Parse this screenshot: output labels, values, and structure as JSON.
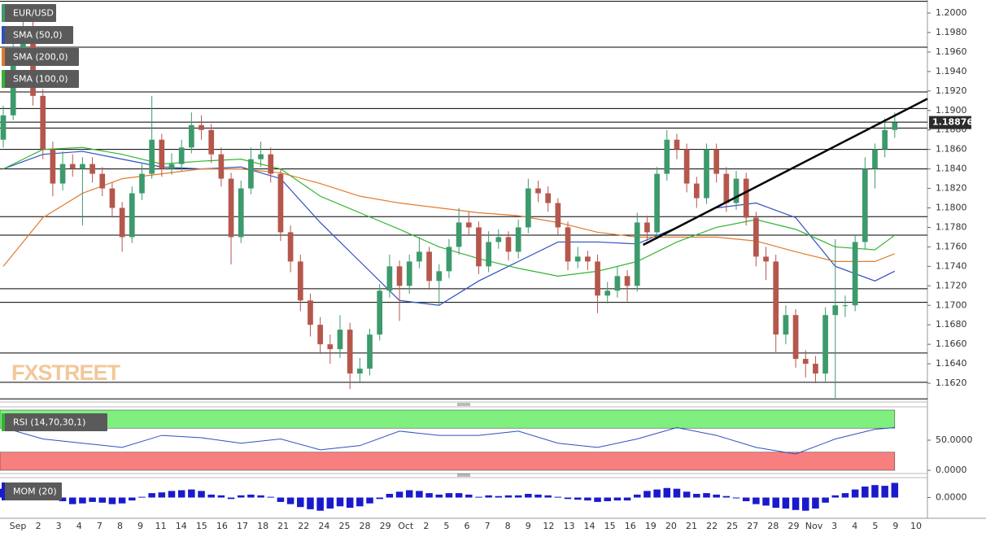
{
  "watermark": "FXSTREET",
  "chart_data": [
    {
      "type": "candlestick",
      "title": "EUR/USD",
      "up_color": "#3d9a6c",
      "down_color": "#b5574c",
      "title_color": "#3d9a6c",
      "open": [
        1.187,
        1.1895,
        1.196,
        1.1985,
        1.1915,
        1.186,
        1.1825,
        1.1845,
        1.184,
        1.1845,
        1.1835,
        1.182,
        1.18,
        1.177,
        1.1815,
        1.1835,
        1.187,
        1.184,
        1.1845,
        1.1862,
        1.1885,
        1.188,
        1.1855,
        1.183,
        1.177,
        1.182,
        1.185,
        1.1855,
        1.1835,
        1.1775,
        1.1745,
        1.1705,
        1.168,
        1.166,
        1.1655,
        1.1675,
        1.163,
        1.1635,
        1.167,
        1.1715,
        1.174,
        1.172,
        1.1745,
        1.1755,
        1.1725,
        1.1735,
        1.176,
        1.1785,
        1.178,
        1.174,
        1.1765,
        1.177,
        1.1755,
        1.178,
        1.182,
        1.1815,
        1.1805,
        1.178,
        1.1745,
        1.175,
        1.1745,
        1.171,
        1.1715,
        1.173,
        1.172,
        1.1785,
        1.1775,
        1.1835,
        1.187,
        1.186,
        1.1825,
        1.181,
        1.186,
        1.1835,
        1.1805,
        1.183,
        1.179,
        1.175,
        1.1745,
        1.167,
        1.169,
        1.1645,
        1.164,
        1.163,
        1.169,
        1.17,
        1.17,
        1.1765,
        1.184,
        1.186,
        1.188
      ],
      "high": [
        1.1905,
        1.1975,
        1.2008,
        1.1995,
        1.1922,
        1.1868,
        1.1858,
        1.1855,
        1.1852,
        1.1852,
        1.1842,
        1.1826,
        1.1806,
        1.1822,
        1.1845,
        1.1915,
        1.1876,
        1.1856,
        1.187,
        1.1898,
        1.1895,
        1.1886,
        1.1862,
        1.1836,
        1.1828,
        1.1862,
        1.1868,
        1.1862,
        1.184,
        1.1782,
        1.1752,
        1.1712,
        1.1688,
        1.167,
        1.169,
        1.1682,
        1.1646,
        1.1676,
        1.1722,
        1.1752,
        1.1746,
        1.1752,
        1.177,
        1.176,
        1.1742,
        1.1768,
        1.18,
        1.1796,
        1.1786,
        1.1776,
        1.1778,
        1.1776,
        1.1788,
        1.183,
        1.1828,
        1.1822,
        1.181,
        1.1786,
        1.176,
        1.1756,
        1.1752,
        1.1724,
        1.174,
        1.1736,
        1.1795,
        1.1792,
        1.1842,
        1.188,
        1.1876,
        1.1866,
        1.1832,
        1.1866,
        1.1866,
        1.1842,
        1.1838,
        1.1836,
        1.1796,
        1.176,
        1.1752,
        1.17,
        1.1696,
        1.1654,
        1.1648,
        1.1698,
        1.1768,
        1.171,
        1.1772,
        1.1852,
        1.1866,
        1.1892,
        1.1898
      ],
      "low": [
        1.1862,
        1.189,
        1.195,
        1.1905,
        1.185,
        1.1812,
        1.1818,
        1.1832,
        1.1782,
        1.1826,
        1.1812,
        1.179,
        1.1755,
        1.1764,
        1.1808,
        1.183,
        1.1832,
        1.1834,
        1.1838,
        1.1856,
        1.187,
        1.1846,
        1.1822,
        1.1742,
        1.1764,
        1.1814,
        1.1842,
        1.1826,
        1.1766,
        1.1734,
        1.1694,
        1.1668,
        1.165,
        1.164,
        1.1646,
        1.1614,
        1.162,
        1.1628,
        1.1664,
        1.1708,
        1.1684,
        1.1712,
        1.1738,
        1.1716,
        1.17,
        1.1728,
        1.1752,
        1.1772,
        1.1732,
        1.1734,
        1.1758,
        1.1746,
        1.1748,
        1.1774,
        1.1806,
        1.1796,
        1.1772,
        1.1736,
        1.1738,
        1.1736,
        1.1692,
        1.1702,
        1.1708,
        1.1704,
        1.1714,
        1.1766,
        1.1768,
        1.1828,
        1.185,
        1.1816,
        1.18,
        1.1804,
        1.1826,
        1.1796,
        1.1798,
        1.1782,
        1.174,
        1.1726,
        1.1652,
        1.166,
        1.1636,
        1.1626,
        1.162,
        1.1622,
        1.1605,
        1.1688,
        1.1694,
        1.1758,
        1.182,
        1.1852,
        1.1872
      ],
      "close": [
        1.1895,
        1.196,
        1.1985,
        1.1915,
        1.186,
        1.1825,
        1.1845,
        1.184,
        1.1845,
        1.1835,
        1.182,
        1.18,
        1.177,
        1.1815,
        1.1835,
        1.187,
        1.184,
        1.1845,
        1.1862,
        1.1885,
        1.188,
        1.1855,
        1.183,
        1.177,
        1.182,
        1.185,
        1.1855,
        1.1835,
        1.1775,
        1.1745,
        1.1705,
        1.168,
        1.166,
        1.1655,
        1.1675,
        1.163,
        1.1635,
        1.167,
        1.1715,
        1.174,
        1.172,
        1.1745,
        1.1755,
        1.1725,
        1.1735,
        1.176,
        1.1785,
        1.178,
        1.174,
        1.1765,
        1.177,
        1.1755,
        1.178,
        1.182,
        1.1815,
        1.1805,
        1.178,
        1.1745,
        1.175,
        1.1745,
        1.171,
        1.1715,
        1.173,
        1.172,
        1.1785,
        1.1775,
        1.1835,
        1.187,
        1.186,
        1.1825,
        1.181,
        1.186,
        1.1835,
        1.1805,
        1.183,
        1.179,
        1.175,
        1.1745,
        1.167,
        1.169,
        1.1645,
        1.164,
        1.163,
        1.169,
        1.17,
        1.17,
        1.1765,
        1.184,
        1.186,
        1.188,
        1.18876
      ],
      "overlays": [
        {
          "name": "SMA (50,0)",
          "color": "#2f4fc0",
          "x": [
            0,
            4,
            8,
            12,
            16,
            20,
            24,
            28,
            32,
            36,
            40,
            44,
            48,
            52,
            56,
            60,
            64,
            68,
            72,
            76,
            80,
            84,
            88,
            90
          ],
          "values": [
            1.184,
            1.1855,
            1.1858,
            1.185,
            1.1842,
            1.184,
            1.1842,
            1.183,
            1.1785,
            1.1745,
            1.1705,
            1.17,
            1.1725,
            1.1745,
            1.1765,
            1.1765,
            1.1763,
            1.178,
            1.18,
            1.1805,
            1.179,
            1.174,
            1.1725,
            1.1735
          ]
        },
        {
          "name": "SMA (200,0)",
          "color": "#e07b2c",
          "x": [
            0,
            4,
            8,
            12,
            16,
            20,
            24,
            28,
            32,
            36,
            40,
            44,
            48,
            52,
            56,
            60,
            64,
            68,
            72,
            76,
            80,
            84,
            88,
            90
          ],
          "values": [
            1.174,
            1.179,
            1.1815,
            1.183,
            1.1835,
            1.184,
            1.184,
            1.1836,
            1.1825,
            1.1812,
            1.1805,
            1.18,
            1.1795,
            1.1792,
            1.1785,
            1.1775,
            1.177,
            1.177,
            1.177,
            1.1766,
            1.1755,
            1.1745,
            1.1745,
            1.1753
          ]
        },
        {
          "name": "SMA (100,0)",
          "color": "#33b533",
          "x": [
            0,
            4,
            8,
            12,
            16,
            20,
            24,
            28,
            32,
            36,
            40,
            44,
            48,
            52,
            56,
            60,
            64,
            68,
            72,
            76,
            80,
            84,
            88,
            90
          ],
          "values": [
            1.184,
            1.186,
            1.1862,
            1.1855,
            1.1845,
            1.1848,
            1.185,
            1.184,
            1.1812,
            1.1795,
            1.1778,
            1.176,
            1.1748,
            1.1738,
            1.173,
            1.1735,
            1.1745,
            1.1765,
            1.178,
            1.1788,
            1.1778,
            1.176,
            1.1757,
            1.1772
          ]
        }
      ],
      "trendline": {
        "x": [
          64.6,
          93.3
        ],
        "y": [
          1.1762,
          1.1912
        ],
        "color": "#000000"
      },
      "levels": [
        1.2012,
        1.1965,
        1.1919,
        1.1902,
        1.1888,
        1.1882,
        1.186,
        1.184,
        1.1791,
        1.1772,
        1.1717,
        1.1703,
        1.1651,
        1.1621,
        1.1604
      ],
      "xlim": [
        -0.33,
        93.3
      ],
      "ylim": [
        1.16025,
        1.20134
      ],
      "yticks": [
        {
          "value": 1.162,
          "label": "1.1620"
        },
        {
          "value": 1.164,
          "label": "1.1640"
        },
        {
          "value": 1.166,
          "label": "1.1660"
        },
        {
          "value": 1.168,
          "label": "1.1680"
        },
        {
          "value": 1.17,
          "label": "1.1700"
        },
        {
          "value": 1.172,
          "label": "1.1720"
        },
        {
          "value": 1.174,
          "label": "1.1740"
        },
        {
          "value": 1.176,
          "label": "1.1760"
        },
        {
          "value": 1.178,
          "label": "1.1780"
        },
        {
          "value": 1.18,
          "label": "1.1800"
        },
        {
          "value": 1.182,
          "label": "1.1820"
        },
        {
          "value": 1.184,
          "label": "1.1840"
        },
        {
          "value": 1.186,
          "label": "1.1860"
        },
        {
          "value": 1.188,
          "label": "1.1880"
        },
        {
          "value": 1.19,
          "label": "1.1900"
        },
        {
          "value": 1.192,
          "label": "1.1920"
        },
        {
          "value": 1.194,
          "label": "1.1940"
        },
        {
          "value": 1.196,
          "label": "1.1960"
        },
        {
          "value": 1.198,
          "label": "1.1980"
        },
        {
          "value": 1.2,
          "label": "1.2000"
        }
      ],
      "xlabels": [
        "Sep",
        "2",
        "3",
        "4",
        "7",
        "8",
        "9",
        "11",
        "14",
        "15",
        "16",
        "17",
        "18",
        "21",
        "22",
        "24",
        "25",
        "28",
        "29",
        "Oct",
        "2",
        "5",
        "6",
        "7",
        "8",
        "9",
        "12",
        "13",
        "14",
        "15",
        "16",
        "19",
        "20",
        "21",
        "22",
        "25",
        "27",
        "28",
        "29",
        "Nov",
        "3",
        "4",
        "5",
        "9",
        "10"
      ]
    },
    {
      "type": "line",
      "title": "RSI (14,70,30,1)",
      "color": "#2f4fc0",
      "title_color": "#33b533",
      "x": [
        0,
        4,
        8,
        12,
        16,
        20,
        24,
        28,
        32,
        36,
        40,
        44,
        48,
        52,
        56,
        60,
        64,
        68,
        72,
        76,
        80,
        84,
        88,
        90
      ],
      "values": [
        71,
        52,
        45,
        38,
        58,
        54,
        45,
        52,
        34,
        41,
        65,
        58,
        58,
        65,
        45,
        38,
        52,
        71,
        58,
        38,
        27,
        52,
        68,
        71
      ],
      "overbought": 70,
      "oversold": 30,
      "overbought_color": "#7ff07f",
      "oversold_color": "#f87f7f",
      "ylim": [
        0,
        100
      ],
      "yticks": [
        {
          "value": 0,
          "label": "0.0000"
        },
        {
          "value": 50,
          "label": "50.0000"
        }
      ]
    },
    {
      "type": "bar",
      "title": "MOM (20)",
      "color": "#1a1acc",
      "title_color": "#1a1acc",
      "values": [
        0.012,
        0.015,
        0.013,
        0.004,
        0.002,
        -0.003,
        -0.005,
        -0.009,
        -0.008,
        -0.006,
        -0.007,
        -0.009,
        -0.008,
        -0.004,
        0.001,
        0.006,
        0.007,
        0.009,
        0.01,
        0.011,
        0.009,
        0.004,
        0.003,
        -0.002,
        0.003,
        0.004,
        0.003,
        0.001,
        -0.006,
        -0.009,
        -0.013,
        -0.016,
        -0.018,
        -0.015,
        -0.012,
        -0.014,
        -0.012,
        -0.008,
        -0.002,
        0.005,
        0.008,
        0.01,
        0.009,
        0.006,
        0.004,
        0.006,
        0.006,
        0.004,
        0.001,
        0.003,
        0.002,
        0.003,
        0.003,
        0.005,
        0.004,
        0.003,
        0.001,
        -0.002,
        -0.003,
        -0.004,
        -0.006,
        -0.005,
        -0.004,
        -0.004,
        0.004,
        0.009,
        0.011,
        0.013,
        0.012,
        0.008,
        0.005,
        0.006,
        0.004,
        0.002,
        -0.001,
        -0.005,
        -0.009,
        -0.011,
        -0.014,
        -0.015,
        -0.017,
        -0.018,
        -0.015,
        -0.007,
        0.003,
        0.006,
        0.011,
        0.015,
        0.017,
        0.016,
        0.02
      ],
      "ylim": [
        -0.025,
        0.025
      ],
      "yticks": [
        {
          "value": 0,
          "label": "0.0000"
        }
      ]
    }
  ]
}
